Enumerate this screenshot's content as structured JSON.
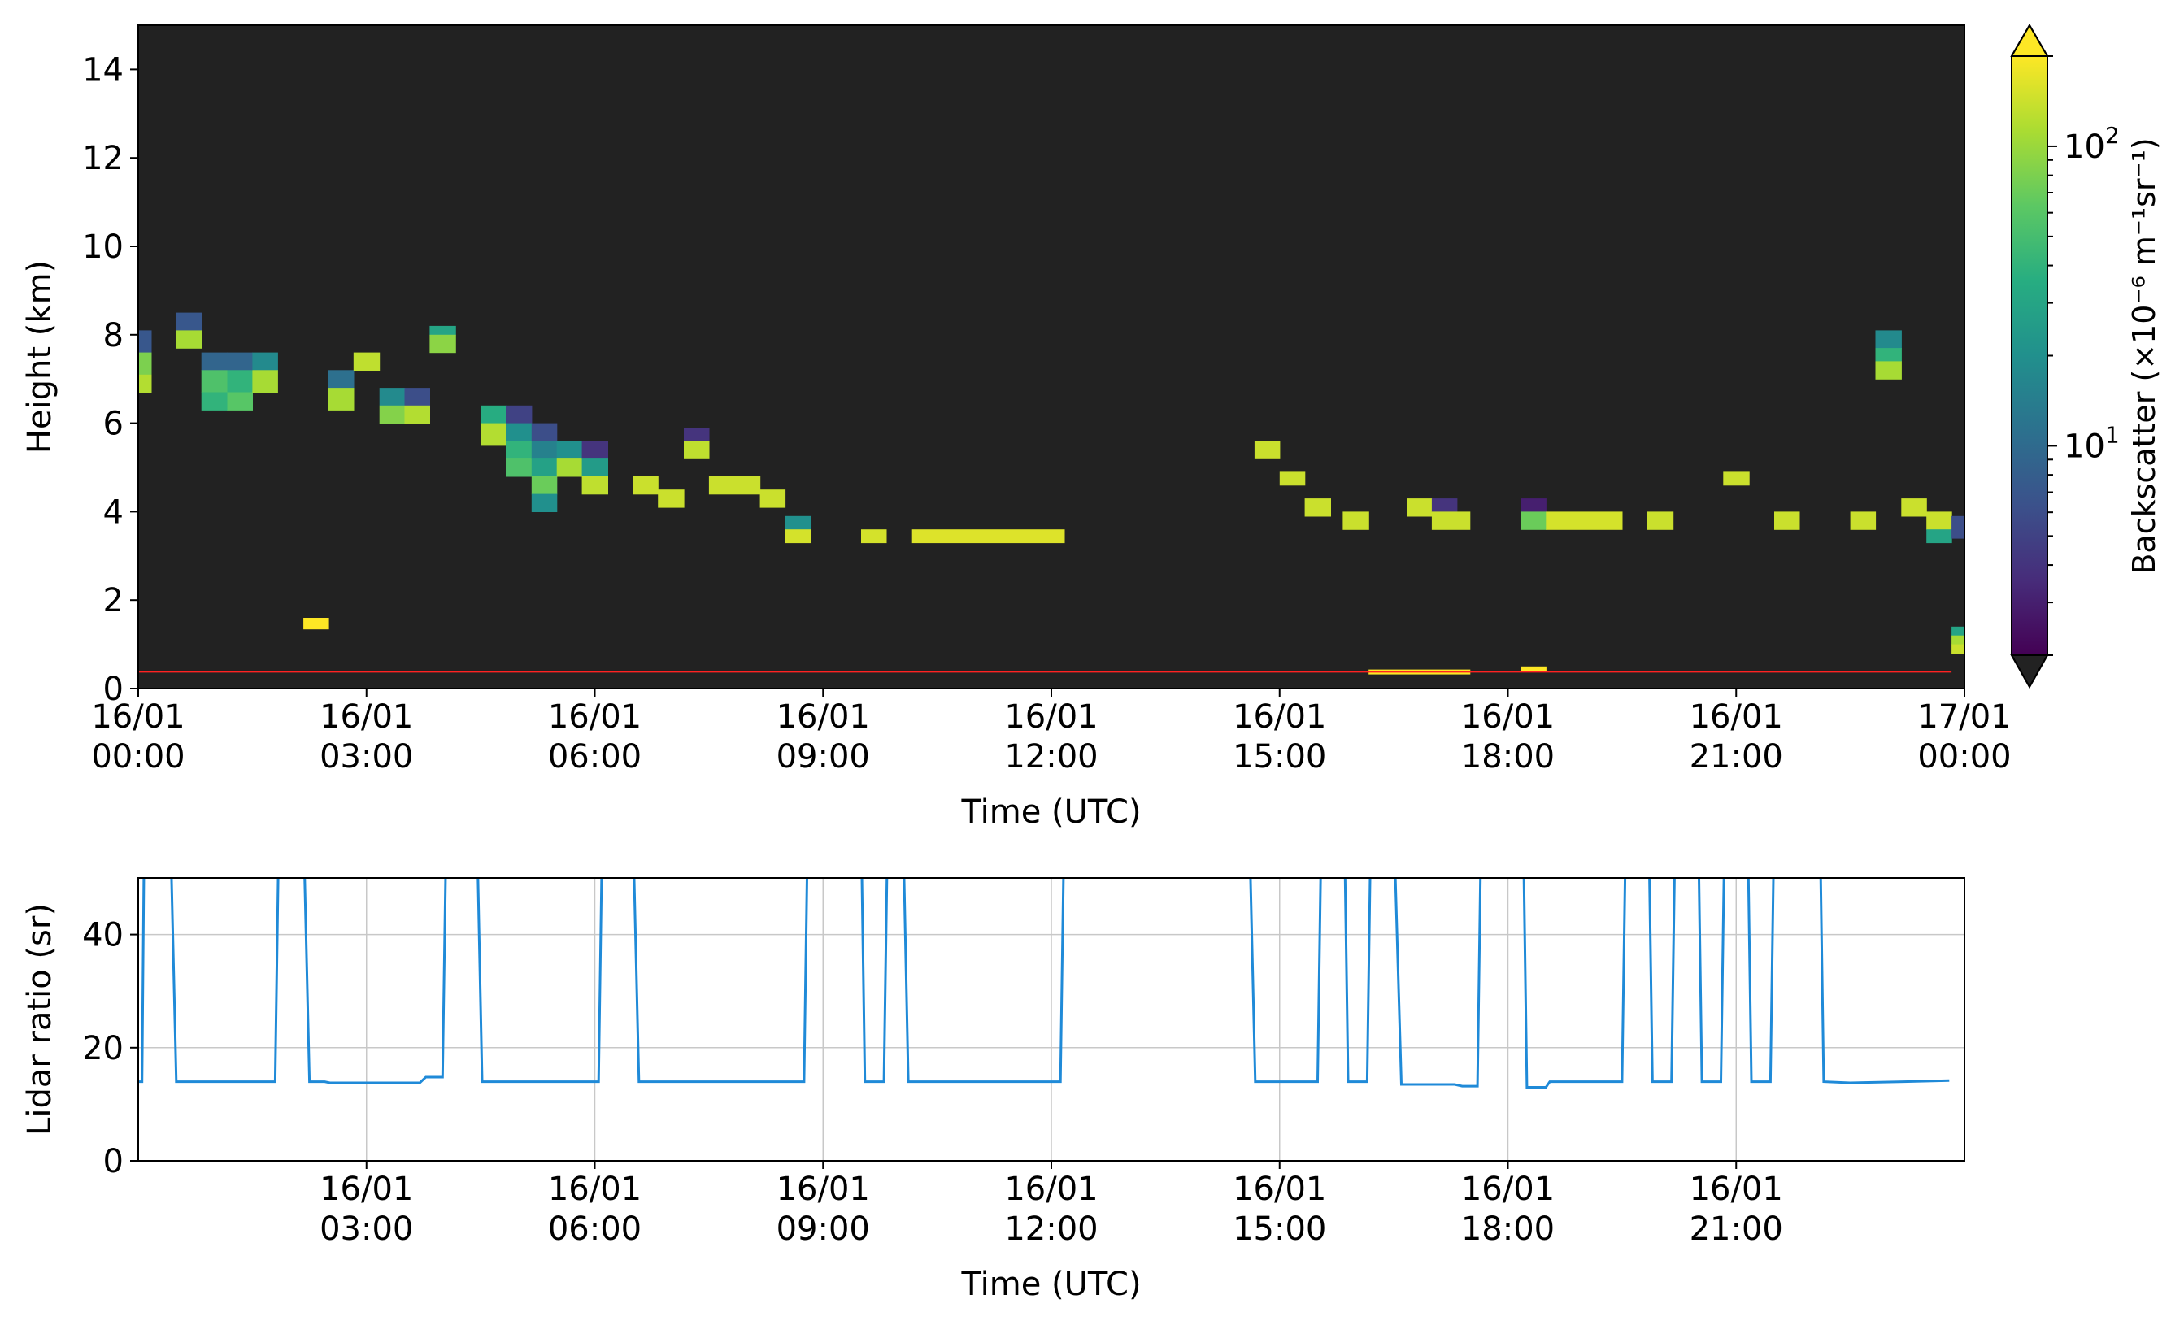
{
  "chart_data": [
    {
      "type": "heatmap",
      "title": "",
      "xlabel": "Time (UTC)",
      "ylabel": "Height (km)",
      "xlim_hours": [
        0,
        24
      ],
      "ylim": [
        0,
        15
      ],
      "background_color": "#222222",
      "x_ticks": [
        {
          "h": 0,
          "date": "16/01",
          "time": "00:00"
        },
        {
          "h": 3,
          "date": "16/01",
          "time": "03:00"
        },
        {
          "h": 6,
          "date": "16/01",
          "time": "06:00"
        },
        {
          "h": 9,
          "date": "16/01",
          "time": "09:00"
        },
        {
          "h": 12,
          "date": "16/01",
          "time": "12:00"
        },
        {
          "h": 15,
          "date": "16/01",
          "time": "15:00"
        },
        {
          "h": 18,
          "date": "16/01",
          "time": "18:00"
        },
        {
          "h": 21,
          "date": "16/01",
          "time": "21:00"
        },
        {
          "h": 24,
          "date": "17/01",
          "time": "00:00"
        }
      ],
      "y_ticks": [
        0,
        2,
        4,
        6,
        8,
        10,
        12,
        14
      ],
      "reference_line": {
        "height_km": 0.38,
        "color": "#ff2222"
      },
      "colorbar": {
        "label": "Backscatter (×10⁻⁶ m⁻¹sr⁻¹)",
        "scale": "log",
        "range": [
          2,
          200
        ],
        "tick_labels": [
          {
            "value": 100,
            "base": "10",
            "exp": "2"
          },
          {
            "value": 10,
            "base": "10",
            "exp": "1"
          }
        ],
        "extend": "both"
      },
      "cells_note": "each cell: h0,h1 in hours UTC; z0,z1 in km; v backscatter",
      "cells": [
        {
          "h0": 0.0,
          "h1": 0.17,
          "z0": 7.6,
          "z1": 8.1,
          "v": 7
        },
        {
          "h0": 0.0,
          "h1": 0.17,
          "z0": 7.1,
          "z1": 7.6,
          "v": 80
        },
        {
          "h0": 0.0,
          "h1": 0.17,
          "z0": 6.7,
          "z1": 7.1,
          "v": 120
        },
        {
          "h0": 0.5,
          "h1": 0.83,
          "z0": 8.1,
          "z1": 8.5,
          "v": 7
        },
        {
          "h0": 0.5,
          "h1": 0.83,
          "z0": 7.7,
          "z1": 8.1,
          "v": 110
        },
        {
          "h0": 0.83,
          "h1": 1.17,
          "z0": 7.2,
          "z1": 7.6,
          "v": 9
        },
        {
          "h0": 0.83,
          "h1": 1.17,
          "z0": 6.7,
          "z1": 7.2,
          "v": 55
        },
        {
          "h0": 0.83,
          "h1": 1.17,
          "z0": 6.3,
          "z1": 6.7,
          "v": 40
        },
        {
          "h0": 1.17,
          "h1": 1.5,
          "z0": 7.2,
          "z1": 7.6,
          "v": 9
        },
        {
          "h0": 1.17,
          "h1": 1.5,
          "z0": 6.7,
          "z1": 7.2,
          "v": 40
        },
        {
          "h0": 1.17,
          "h1": 1.5,
          "z0": 6.3,
          "z1": 6.7,
          "v": 60
        },
        {
          "h0": 1.5,
          "h1": 1.83,
          "z0": 7.2,
          "z1": 7.6,
          "v": 18
        },
        {
          "h0": 1.5,
          "h1": 1.83,
          "z0": 6.7,
          "z1": 7.2,
          "v": 110
        },
        {
          "h0": 2.17,
          "h1": 2.5,
          "z0": 1.35,
          "z1": 1.6,
          "v": 200
        },
        {
          "h0": 2.5,
          "h1": 2.83,
          "z0": 6.8,
          "z1": 7.2,
          "v": 11
        },
        {
          "h0": 2.5,
          "h1": 2.83,
          "z0": 6.3,
          "z1": 6.8,
          "v": 110
        },
        {
          "h0": 2.83,
          "h1": 3.17,
          "z0": 7.2,
          "z1": 7.6,
          "v": 130
        },
        {
          "h0": 3.17,
          "h1": 3.5,
          "z0": 6.4,
          "z1": 6.8,
          "v": 18
        },
        {
          "h0": 3.17,
          "h1": 3.5,
          "z0": 6.0,
          "z1": 6.4,
          "v": 85
        },
        {
          "h0": 3.5,
          "h1": 3.83,
          "z0": 6.4,
          "z1": 6.8,
          "v": 6
        },
        {
          "h0": 3.5,
          "h1": 3.83,
          "z0": 6.0,
          "z1": 6.4,
          "v": 120
        },
        {
          "h0": 3.83,
          "h1": 4.17,
          "z0": 8.0,
          "z1": 8.2,
          "v": 30
        },
        {
          "h0": 3.83,
          "h1": 4.17,
          "z0": 7.6,
          "z1": 8.0,
          "v": 90
        },
        {
          "h0": 4.5,
          "h1": 4.83,
          "z0": 6.0,
          "z1": 6.4,
          "v": 35
        },
        {
          "h0": 4.5,
          "h1": 4.83,
          "z0": 5.5,
          "z1": 6.0,
          "v": 120
        },
        {
          "h0": 4.83,
          "h1": 5.17,
          "z0": 6.0,
          "z1": 6.4,
          "v": 5
        },
        {
          "h0": 4.83,
          "h1": 5.17,
          "z0": 5.6,
          "z1": 6.0,
          "v": 20
        },
        {
          "h0": 4.83,
          "h1": 5.17,
          "z0": 5.2,
          "z1": 5.6,
          "v": 40
        },
        {
          "h0": 4.83,
          "h1": 5.17,
          "z0": 4.8,
          "z1": 5.2,
          "v": 55
        },
        {
          "h0": 5.17,
          "h1": 5.5,
          "z0": 5.6,
          "z1": 6.0,
          "v": 6
        },
        {
          "h0": 5.17,
          "h1": 5.5,
          "z0": 5.2,
          "z1": 5.6,
          "v": 15
        },
        {
          "h0": 5.17,
          "h1": 5.5,
          "z0": 4.8,
          "z1": 5.2,
          "v": 28
        },
        {
          "h0": 5.17,
          "h1": 5.5,
          "z0": 4.4,
          "z1": 4.8,
          "v": 70
        },
        {
          "h0": 5.17,
          "h1": 5.5,
          "z0": 4.0,
          "z1": 4.4,
          "v": 20
        },
        {
          "h0": 5.5,
          "h1": 5.83,
          "z0": 5.2,
          "z1": 5.6,
          "v": 20
        },
        {
          "h0": 5.5,
          "h1": 5.83,
          "z0": 4.8,
          "z1": 5.2,
          "v": 110
        },
        {
          "h0": 5.83,
          "h1": 6.17,
          "z0": 5.2,
          "z1": 5.6,
          "v": 4
        },
        {
          "h0": 5.83,
          "h1": 6.17,
          "z0": 4.8,
          "z1": 5.2,
          "v": 25
        },
        {
          "h0": 5.83,
          "h1": 6.17,
          "z0": 4.4,
          "z1": 4.8,
          "v": 130
        },
        {
          "h0": 6.5,
          "h1": 6.83,
          "z0": 4.4,
          "z1": 4.8,
          "v": 140
        },
        {
          "h0": 6.83,
          "h1": 7.17,
          "z0": 4.1,
          "z1": 4.5,
          "v": 140
        },
        {
          "h0": 7.17,
          "h1": 7.5,
          "z0": 5.6,
          "z1": 5.9,
          "v": 4
        },
        {
          "h0": 7.17,
          "h1": 7.5,
          "z0": 5.2,
          "z1": 5.6,
          "v": 130
        },
        {
          "h0": 7.5,
          "h1": 8.17,
          "z0": 4.4,
          "z1": 4.8,
          "v": 140
        },
        {
          "h0": 8.17,
          "h1": 8.5,
          "z0": 4.1,
          "z1": 4.5,
          "v": 140
        },
        {
          "h0": 8.5,
          "h1": 8.83,
          "z0": 3.6,
          "z1": 3.9,
          "v": 20
        },
        {
          "h0": 8.5,
          "h1": 8.83,
          "z0": 3.3,
          "z1": 3.6,
          "v": 150
        },
        {
          "h0": 9.5,
          "h1": 9.83,
          "z0": 3.3,
          "z1": 3.6,
          "v": 150
        },
        {
          "h0": 10.17,
          "h1": 12.17,
          "z0": 3.3,
          "z1": 3.6,
          "v": 160
        },
        {
          "h0": 14.67,
          "h1": 15.0,
          "z0": 5.2,
          "z1": 5.6,
          "v": 140
        },
        {
          "h0": 15.0,
          "h1": 15.33,
          "z0": 4.6,
          "z1": 4.9,
          "v": 140
        },
        {
          "h0": 15.33,
          "h1": 15.67,
          "z0": 3.9,
          "z1": 4.3,
          "v": 140
        },
        {
          "h0": 15.83,
          "h1": 16.17,
          "z0": 3.6,
          "z1": 4.0,
          "v": 140
        },
        {
          "h0": 16.17,
          "h1": 17.5,
          "z0": 0.33,
          "z1": 0.43,
          "v": 200
        },
        {
          "h0": 16.67,
          "h1": 17.0,
          "z0": 3.9,
          "z1": 4.3,
          "v": 140
        },
        {
          "h0": 17.0,
          "h1": 17.33,
          "z0": 4.0,
          "z1": 4.3,
          "v": 4
        },
        {
          "h0": 17.0,
          "h1": 17.5,
          "z0": 3.6,
          "z1": 4.0,
          "v": 140
        },
        {
          "h0": 18.17,
          "h1": 18.5,
          "z0": 4.0,
          "z1": 4.3,
          "v": 3
        },
        {
          "h0": 18.17,
          "h1": 18.5,
          "z0": 3.6,
          "z1": 4.0,
          "v": 70
        },
        {
          "h0": 18.17,
          "h1": 18.5,
          "z0": 0.38,
          "z1": 0.5,
          "v": 200
        },
        {
          "h0": 18.5,
          "h1": 19.5,
          "z0": 3.6,
          "z1": 4.0,
          "v": 150
        },
        {
          "h0": 19.83,
          "h1": 20.17,
          "z0": 3.6,
          "z1": 4.0,
          "v": 140
        },
        {
          "h0": 20.83,
          "h1": 21.17,
          "z0": 4.6,
          "z1": 4.9,
          "v": 140
        },
        {
          "h0": 21.5,
          "h1": 21.83,
          "z0": 3.6,
          "z1": 4.0,
          "v": 140
        },
        {
          "h0": 22.5,
          "h1": 22.83,
          "z0": 3.6,
          "z1": 4.0,
          "v": 140
        },
        {
          "h0": 22.83,
          "h1": 23.17,
          "z0": 7.7,
          "z1": 8.1,
          "v": 18
        },
        {
          "h0": 22.83,
          "h1": 23.17,
          "z0": 7.4,
          "z1": 7.7,
          "v": 40
        },
        {
          "h0": 22.83,
          "h1": 23.17,
          "z0": 7.0,
          "z1": 7.4,
          "v": 110
        },
        {
          "h0": 23.17,
          "h1": 23.5,
          "z0": 3.9,
          "z1": 4.3,
          "v": 140
        },
        {
          "h0": 23.5,
          "h1": 23.83,
          "z0": 3.6,
          "z1": 4.0,
          "v": 140
        },
        {
          "h0": 23.5,
          "h1": 23.83,
          "z0": 3.3,
          "z1": 3.6,
          "v": 30
        },
        {
          "h0": 23.83,
          "h1": 24.0,
          "z0": 3.4,
          "z1": 3.9,
          "v": 6
        },
        {
          "h0": 23.83,
          "h1": 24.0,
          "z0": 1.2,
          "z1": 1.4,
          "v": 30
        },
        {
          "h0": 23.83,
          "h1": 24.0,
          "z0": 1.0,
          "z1": 1.2,
          "v": 110
        },
        {
          "h0": 23.83,
          "h1": 24.0,
          "z0": 0.8,
          "z1": 1.0,
          "v": 140
        }
      ]
    },
    {
      "type": "line",
      "title": "",
      "xlabel": "Time (UTC)",
      "ylabel": "Lidar ratio (sr)",
      "xlim_hours": [
        0,
        24
      ],
      "ylim": [
        0,
        50
      ],
      "grid": true,
      "x_ticks": [
        {
          "h": 3,
          "date": "16/01",
          "time": "03:00"
        },
        {
          "h": 6,
          "date": "16/01",
          "time": "06:00"
        },
        {
          "h": 9,
          "date": "16/01",
          "time": "09:00"
        },
        {
          "h": 12,
          "date": "16/01",
          "time": "12:00"
        },
        {
          "h": 15,
          "date": "16/01",
          "time": "15:00"
        },
        {
          "h": 18,
          "date": "16/01",
          "time": "18:00"
        },
        {
          "h": 21,
          "date": "16/01",
          "time": "21:00"
        }
      ],
      "y_ticks": [
        0,
        20,
        40
      ],
      "series": [
        {
          "color": "#1f8ad8",
          "points": [
            [
              0.0,
              14
            ],
            [
              0.05,
              14
            ],
            [
              0.08,
              60
            ],
            [
              0.42,
              60
            ],
            [
              0.5,
              14
            ],
            [
              1.8,
              14
            ],
            [
              1.85,
              60
            ],
            [
              2.17,
              60
            ],
            [
              2.25,
              14
            ],
            [
              2.45,
              14
            ],
            [
              2.52,
              13.8
            ],
            [
              3.7,
              13.8
            ],
            [
              3.78,
              14.8
            ],
            [
              4.0,
              14.8
            ],
            [
              4.05,
              60
            ],
            [
              4.45,
              60
            ],
            [
              4.52,
              14
            ],
            [
              6.05,
              14
            ],
            [
              6.1,
              60
            ],
            [
              6.5,
              60
            ],
            [
              6.58,
              14
            ],
            [
              8.75,
              14
            ],
            [
              8.8,
              60
            ],
            [
              9.5,
              60
            ],
            [
              9.55,
              14
            ],
            [
              9.8,
              14
            ],
            [
              9.85,
              60
            ],
            [
              10.05,
              60
            ],
            [
              10.12,
              14
            ],
            [
              12.12,
              14
            ],
            [
              12.17,
              60
            ],
            [
              14.6,
              60
            ],
            [
              14.68,
              14
            ],
            [
              15.5,
              14
            ],
            [
              15.55,
              60
            ],
            [
              15.85,
              60
            ],
            [
              15.9,
              14
            ],
            [
              16.15,
              14
            ],
            [
              16.2,
              60
            ],
            [
              16.5,
              60
            ],
            [
              16.6,
              13.5
            ],
            [
              17.3,
              13.5
            ],
            [
              17.4,
              13.2
            ],
            [
              17.6,
              13.2
            ],
            [
              17.65,
              60
            ],
            [
              18.2,
              60
            ],
            [
              18.25,
              13
            ],
            [
              18.5,
              13
            ],
            [
              18.55,
              14
            ],
            [
              19.5,
              14
            ],
            [
              19.55,
              60
            ],
            [
              19.85,
              60
            ],
            [
              19.9,
              14
            ],
            [
              20.15,
              14
            ],
            [
              20.2,
              60
            ],
            [
              20.5,
              60
            ],
            [
              20.55,
              14
            ],
            [
              20.8,
              14
            ],
            [
              20.85,
              60
            ],
            [
              21.15,
              60
            ],
            [
              21.2,
              14
            ],
            [
              21.45,
              14
            ],
            [
              21.5,
              60
            ],
            [
              22.1,
              60
            ],
            [
              22.15,
              14
            ],
            [
              22.5,
              13.8
            ],
            [
              23.2,
              14
            ],
            [
              23.8,
              14.2
            ]
          ]
        }
      ]
    }
  ]
}
